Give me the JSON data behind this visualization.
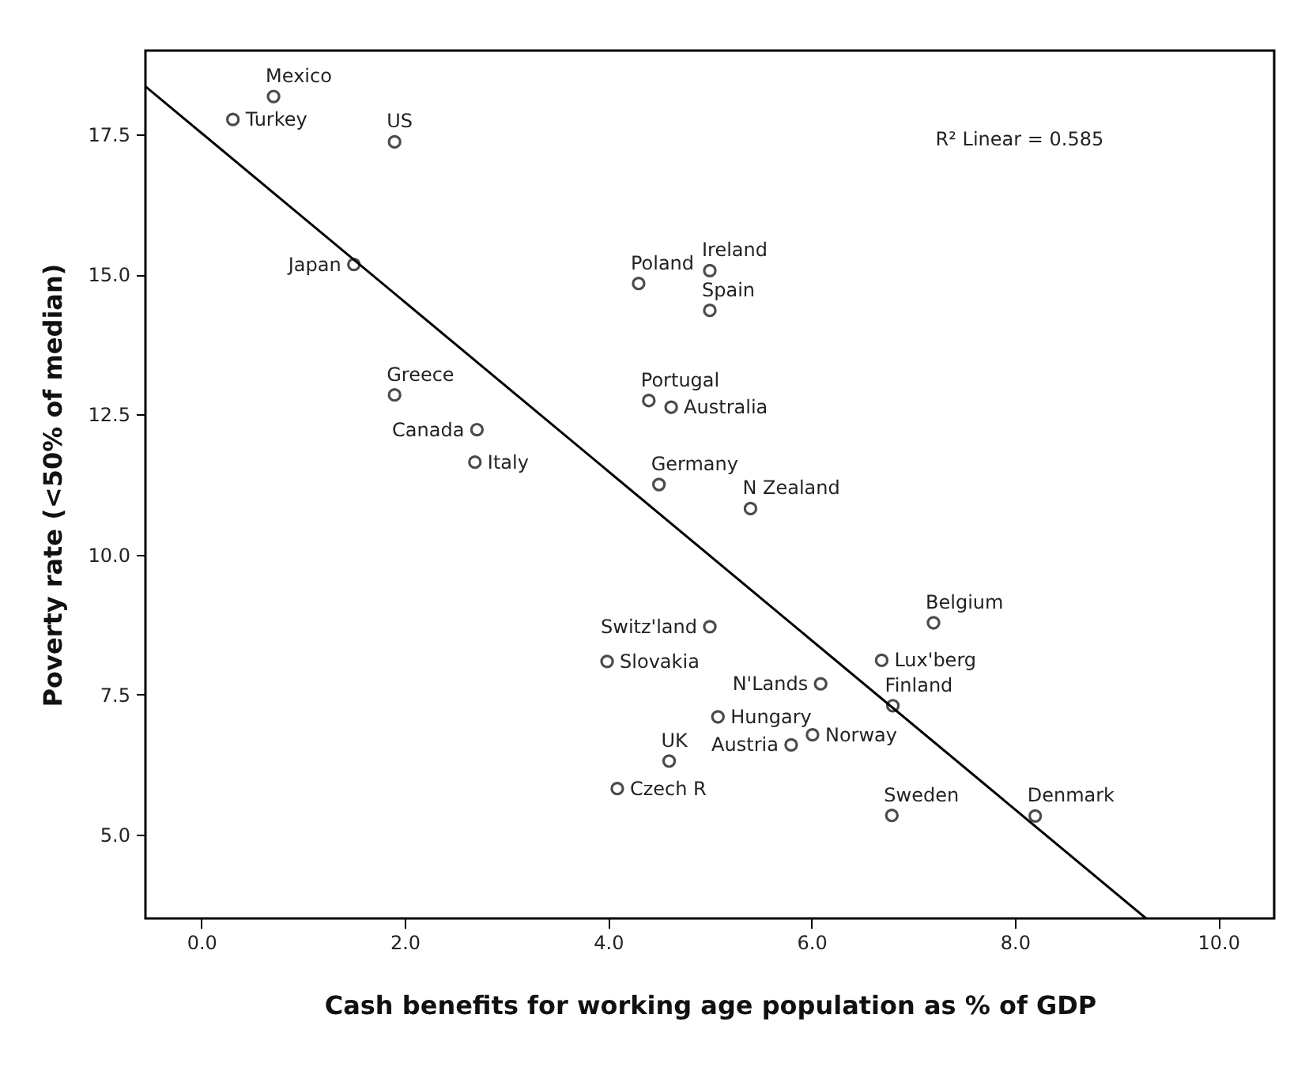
{
  "chart_data": {
    "type": "scatter",
    "xlabel": "Cash benefits for working age population as % of GDP",
    "ylabel": "Poverty rate (<50% of median)",
    "xlim": [
      -0.55,
      10.55
    ],
    "ylim": [
      3.5,
      19.0
    ],
    "xticks": [
      {
        "value": 0,
        "label": "0.0"
      },
      {
        "value": 2,
        "label": "2.0"
      },
      {
        "value": 4,
        "label": "4.0"
      },
      {
        "value": 6,
        "label": "6.0"
      },
      {
        "value": 8,
        "label": "8.0"
      },
      {
        "value": 10,
        "label": "10.0"
      }
    ],
    "yticks": [
      {
        "value": 5,
        "label": "5.0"
      },
      {
        "value": 7.5,
        "label": "7.5"
      },
      {
        "value": 10,
        "label": "10.0"
      },
      {
        "value": 12.5,
        "label": "12.5"
      },
      {
        "value": 15,
        "label": "15.0"
      },
      {
        "value": 17.5,
        "label": "17.5"
      }
    ],
    "marker": "circle",
    "series": [
      {
        "color": "#000000",
        "x": [
          0.31,
          0.71,
          1.9,
          1.5,
          1.9,
          2.71,
          2.69,
          4.3,
          5.0,
          5.0,
          4.4,
          4.62,
          4.5,
          5.4,
          5.0,
          3.99,
          7.2,
          6.69,
          6.09,
          6.8,
          5.08,
          6.01,
          5.8,
          4.6,
          4.09,
          6.79,
          8.2
        ],
        "values": [
          17.77,
          18.18,
          17.37,
          15.18,
          12.85,
          12.23,
          11.65,
          14.84,
          15.07,
          14.36,
          12.75,
          12.63,
          11.25,
          10.82,
          8.71,
          8.09,
          8.78,
          8.11,
          7.69,
          7.3,
          7.1,
          6.78,
          6.6,
          6.31,
          5.82,
          5.34,
          5.33
        ]
      },
      {
        "type": "line",
        "marker": "none",
        "color": "#000000",
        "x": [
          -0.55,
          9.29
        ],
        "values": [
          18.36,
          3.5
        ]
      }
    ],
    "annotations": [
      "R² Linear = 0.585",
      {
        "text": "Turkey",
        "x": 0.31,
        "y": 17.77
      },
      {
        "text": "Mexico",
        "x": 0.71,
        "y": 18.18
      },
      {
        "text": "US",
        "x": 1.9,
        "y": 17.37
      },
      {
        "text": "Japan",
        "x": 1.5,
        "y": 15.18
      },
      {
        "text": "Greece",
        "x": 1.9,
        "y": 12.85
      },
      {
        "text": "Canada",
        "x": 2.71,
        "y": 12.23
      },
      {
        "text": "Italy",
        "x": 2.69,
        "y": 11.65
      },
      {
        "text": "Poland",
        "x": 4.3,
        "y": 14.84
      },
      {
        "text": "Ireland",
        "x": 5.0,
        "y": 15.07
      },
      {
        "text": "Spain",
        "x": 5.0,
        "y": 14.36
      },
      {
        "text": "Portugal",
        "x": 4.4,
        "y": 12.75
      },
      {
        "text": "Australia",
        "x": 4.62,
        "y": 12.63
      },
      {
        "text": "Germany",
        "x": 4.5,
        "y": 11.25
      },
      {
        "text": "N Zealand",
        "x": 5.4,
        "y": 10.82
      },
      {
        "text": "Switz'land",
        "x": 5.0,
        "y": 8.71
      },
      {
        "text": "Slovakia",
        "x": 3.99,
        "y": 8.09
      },
      {
        "text": "Belgium",
        "x": 7.2,
        "y": 8.78
      },
      {
        "text": "Lux'berg",
        "x": 6.69,
        "y": 8.11
      },
      {
        "text": "N'Lands",
        "x": 6.09,
        "y": 7.69
      },
      {
        "text": "Finland",
        "x": 6.8,
        "y": 7.3
      },
      {
        "text": "Hungary",
        "x": 5.08,
        "y": 7.1
      },
      {
        "text": "Norway",
        "x": 6.01,
        "y": 6.78
      },
      {
        "text": "Austria",
        "x": 5.8,
        "y": 6.6
      },
      {
        "text": "UK",
        "x": 4.6,
        "y": 6.31
      },
      {
        "text": "Czech R",
        "x": 4.09,
        "y": 5.82
      },
      {
        "text": "Sweden",
        "x": 6.79,
        "y": 5.34
      },
      {
        "text": "Denmark",
        "x": 8.2,
        "y": 5.33
      }
    ]
  }
}
